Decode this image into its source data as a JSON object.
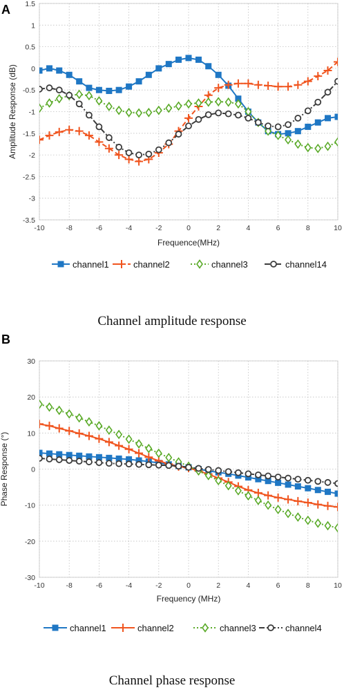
{
  "chart_data": [
    {
      "type": "line",
      "panel": "A",
      "caption": "Channel amplitude response",
      "xlabel": "Frequence(MHz)",
      "ylabel": "Amplitude Response (dB)",
      "xlim": [
        -10,
        10
      ],
      "ylim": [
        -3.5,
        1.5
      ],
      "xticks": [
        -10,
        -8,
        -6,
        -4,
        -2,
        0,
        2,
        4,
        6,
        8,
        10
      ],
      "yticks": [
        -3.5,
        -3,
        -2.5,
        -2,
        -1.5,
        -1,
        -0.5,
        0,
        0.5,
        1,
        1.5
      ],
      "grid": true,
      "legend_position": "bottom",
      "x": [
        -10,
        -9.33,
        -8.67,
        -8,
        -7.33,
        -6.67,
        -6,
        -5.33,
        -4.67,
        -4,
        -3.33,
        -2.67,
        -2,
        -1.33,
        -0.67,
        0,
        0.67,
        1.33,
        2,
        2.67,
        3.33,
        4,
        4.67,
        5.33,
        6,
        6.67,
        7.33,
        8,
        8.67,
        9.33,
        10
      ],
      "series": [
        {
          "name": "channel1",
          "color": "#1f77c4",
          "line": "solid",
          "marker": "square",
          "values": [
            -0.05,
            0.0,
            -0.05,
            -0.15,
            -0.3,
            -0.45,
            -0.5,
            -0.52,
            -0.5,
            -0.42,
            -0.3,
            -0.15,
            0.0,
            0.1,
            0.2,
            0.24,
            0.2,
            0.05,
            -0.15,
            -0.4,
            -0.7,
            -1.0,
            -1.25,
            -1.45,
            -1.52,
            -1.5,
            -1.45,
            -1.35,
            -1.25,
            -1.15,
            -1.12
          ]
        },
        {
          "name": "channel2",
          "color": "#f0541e",
          "line": "dashed",
          "marker": "plus",
          "values": [
            -1.65,
            -1.55,
            -1.47,
            -1.42,
            -1.45,
            -1.55,
            -1.7,
            -1.85,
            -2.0,
            -2.1,
            -2.15,
            -2.1,
            -1.95,
            -1.75,
            -1.45,
            -1.15,
            -0.88,
            -0.62,
            -0.45,
            -0.38,
            -0.35,
            -0.35,
            -0.38,
            -0.4,
            -0.42,
            -0.42,
            -0.38,
            -0.3,
            -0.18,
            -0.05,
            0.15
          ]
        },
        {
          "name": "channel3",
          "color": "#5aaa28",
          "line": "dotted",
          "marker": "diamond",
          "values": [
            -0.92,
            -0.8,
            -0.7,
            -0.63,
            -0.6,
            -0.63,
            -0.75,
            -0.88,
            -0.97,
            -1.02,
            -1.03,
            -1.02,
            -0.97,
            -0.92,
            -0.87,
            -0.82,
            -0.8,
            -0.78,
            -0.77,
            -0.78,
            -0.82,
            -1.0,
            -1.25,
            -1.45,
            -1.55,
            -1.65,
            -1.75,
            -1.83,
            -1.85,
            -1.8,
            -1.7
          ]
        },
        {
          "name": "channel14",
          "color": "#3c3c3c",
          "line": "dashdot",
          "marker": "circle",
          "values": [
            -0.48,
            -0.45,
            -0.5,
            -0.62,
            -0.82,
            -1.08,
            -1.35,
            -1.6,
            -1.82,
            -1.95,
            -2.0,
            -1.98,
            -1.88,
            -1.72,
            -1.52,
            -1.33,
            -1.18,
            -1.07,
            -1.03,
            -1.05,
            -1.08,
            -1.15,
            -1.25,
            -1.33,
            -1.35,
            -1.3,
            -1.15,
            -0.98,
            -0.78,
            -0.55,
            -0.3
          ]
        }
      ]
    },
    {
      "type": "line",
      "panel": "B",
      "caption": "Channel phase response",
      "xlabel": "Frequency (MHz)",
      "ylabel": "Phase Response (°)",
      "xlim": [
        -10,
        10
      ],
      "ylim": [
        -30,
        30
      ],
      "xticks": [
        -10,
        -8,
        -6,
        -4,
        -2,
        0,
        2,
        4,
        6,
        8,
        10
      ],
      "yticks": [
        -30,
        -20,
        -10,
        0,
        10,
        20,
        30
      ],
      "grid": true,
      "legend_position": "bottom",
      "x": [
        -10,
        -9.33,
        -8.67,
        -8,
        -7.33,
        -6.67,
        -6,
        -5.33,
        -4.67,
        -4,
        -3.33,
        -2.67,
        -2,
        -1.33,
        -0.67,
        0,
        0.67,
        1.33,
        2,
        2.67,
        3.33,
        4,
        4.67,
        5.33,
        6,
        6.67,
        7.33,
        8,
        8.67,
        9.33,
        10
      ],
      "series": [
        {
          "name": "channel1",
          "color": "#1f77c4",
          "line": "solid",
          "marker": "square",
          "values": [
            4.5,
            4.3,
            4.1,
            3.9,
            3.7,
            3.5,
            3.3,
            3.1,
            2.9,
            2.7,
            2.4,
            2.1,
            1.7,
            1.3,
            0.9,
            0.5,
            0.0,
            -0.5,
            -0.9,
            -1.3,
            -1.8,
            -2.3,
            -2.8,
            -3.3,
            -3.8,
            -4.3,
            -4.8,
            -5.3,
            -5.8,
            -6.3,
            -6.8
          ]
        },
        {
          "name": "channel2",
          "color": "#f0541e",
          "line": "solid",
          "marker": "plus",
          "values": [
            12.5,
            12.0,
            11.3,
            10.6,
            9.9,
            9.2,
            8.4,
            7.5,
            6.5,
            5.5,
            4.4,
            3.3,
            2.3,
            1.4,
            0.7,
            0.3,
            -0.5,
            -1.4,
            -2.5,
            -3.6,
            -4.8,
            -5.8,
            -6.6,
            -7.3,
            -7.9,
            -8.4,
            -8.9,
            -9.3,
            -9.8,
            -10.2,
            -10.5
          ]
        },
        {
          "name": "channel3",
          "color": "#5aaa28",
          "line": "dotted",
          "marker": "diamond",
          "values": [
            18.0,
            17.2,
            16.3,
            15.3,
            14.2,
            13.1,
            12.0,
            10.8,
            9.6,
            8.3,
            7.0,
            5.7,
            4.4,
            3.2,
            2.0,
            0.8,
            -0.5,
            -1.8,
            -3.2,
            -4.6,
            -6.0,
            -7.4,
            -8.7,
            -10.0,
            -11.2,
            -12.3,
            -13.3,
            -14.2,
            -15.0,
            -15.7,
            -16.3
          ]
        },
        {
          "name": "channel4",
          "color": "#3c3c3c",
          "line": "dashdot",
          "marker": "circle",
          "values": [
            3.0,
            2.8,
            2.6,
            2.4,
            2.2,
            2.0,
            1.8,
            1.6,
            1.5,
            1.4,
            1.3,
            1.2,
            1.1,
            1.0,
            0.8,
            0.5,
            0.2,
            -0.1,
            -0.4,
            -0.7,
            -1.0,
            -1.3,
            -1.6,
            -1.9,
            -2.2,
            -2.5,
            -2.8,
            -3.1,
            -3.4,
            -3.7,
            -4.0
          ]
        }
      ]
    }
  ]
}
